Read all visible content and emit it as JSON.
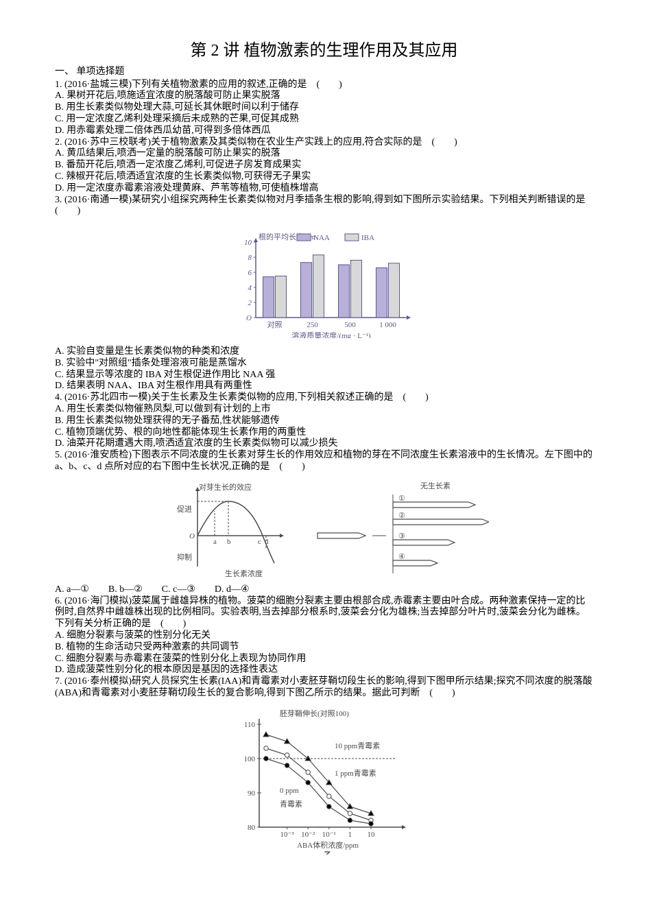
{
  "title": "第 2 讲  植物激素的生理作用及其应用",
  "section1": "一、 单项选择题",
  "q1": {
    "stem": "1. (2016·盐城三模)下列有关植物激素的应用的叙述,正确的是　(　　)",
    "A": "A.  果树开花后,喷施适宜浓度的脱落酸可防止果实脱落",
    "B": "B.  用生长素类似物处理大蒜,可延长其休眠时间以利于储存",
    "C": "C.  用一定浓度乙烯利处理采摘后未成熟的芒果,可促其成熟",
    "D": "D.  用赤霉素处理二倍体西瓜幼苗,可得到多倍体西瓜"
  },
  "q2": {
    "stem": "2.  (2016·苏中三校联考)关于植物激素及其类似物在农业生产实践上的应用,符合实际的是　(　　)",
    "A": "A.  黄瓜结果后,喷洒一定量的脱落酸可防止果实的脱落",
    "B": "B.  番茄开花后,喷洒一定浓度乙烯利,可促进子房发育成果实",
    "C": "C.  辣椒开花后,喷洒适宜浓度的生长素类似物,可获得无子果实",
    "D": "D.  用一定浓度赤霉素溶液处理黄麻、芦苇等植物,可使植株增高"
  },
  "q3": {
    "stem": "3. (2016·南通一模)某研究小组探究两种生长素类似物对月季插条生根的影响,得到如下图所示实验结果。下列相关判断错误的是　(　　)",
    "A": "A.  实验自变量是生长素类似物的种类和浓度",
    "B": "B.  实验中\"对照组\"插条处理溶液可能是蒸馏水",
    "C": "C.  结果显示等浓度的 IBA 对生根促进作用比 NAA 强",
    "D": "D.  结果表明 NAA、IBA 对生根作用具有两重性"
  },
  "fig1": {
    "ylabel": "根的平均长度/cm",
    "xlabel": "溶液质量浓度/(mg · L⁻¹)",
    "legend": [
      "NAA",
      "IBA"
    ],
    "legend_colors": [
      "#b8b0d8",
      "#d8d8d8"
    ],
    "xcats": [
      "对照",
      "250",
      "500",
      "1 000"
    ],
    "yticks": [
      0,
      2,
      4,
      6,
      8,
      10
    ],
    "naa": [
      5.4,
      7.3,
      7.0,
      6.6
    ],
    "iba": [
      5.5,
      8.3,
      7.6,
      7.2
    ],
    "bar_fill_naa": "#b8b0d8",
    "bar_fill_iba": "#d8d8d8",
    "bar_stroke": "#5a5a88",
    "axis_color": "#5a5a88",
    "text_color": "#5a5a88"
  },
  "q4": {
    "stem": "4. (2016·苏北四市一模)关于生长素及生长素类似物的应用,下列相关叙述正确的是　(　　)",
    "A": "A.  用生长素类似物催熟凤梨,可以做到有计划的上市",
    "B": "B.  用生长素类似物处理获得的无子番茄,性状能够遗传",
    "C": "C.  植物顶端优势、根的向地性都能体现生长素作用的两重性",
    "D": "D.  油菜开花期遭遇大雨,喷洒适宜浓度的生长素类似物可以减少损失"
  },
  "q5": {
    "stem": "5. (2016·淮安质检)下图表示不同浓度的生长素对芽生长的作用效应和植物的芽在不同浓度生长素溶液中的生长情况。左下图中的 a、b、c、d 点所对应的右下图中生长状况,正确的是　(　　)",
    "opts": "A. a—①　　B. b—②　　C. c—③　　D. d—④"
  },
  "fig2": {
    "left": {
      "ylabel_top": "对芽生长的效应",
      "ylabel_promote": "促进",
      "ylabel_inhibit": "抑制",
      "xlabel": "生长素浓度",
      "points": [
        "a",
        "b",
        "c",
        "d"
      ],
      "axis_color": "#4a4a4a"
    },
    "right": {
      "title": "无生长素",
      "labels": [
        "①",
        "②",
        "③",
        "④"
      ],
      "axis_color": "#4a4a4a"
    }
  },
  "q6": {
    "stem": "6. (2016·海门模拟)菠菜属于雌雄异株的植物。菠菜的细胞分裂素主要由根部合成,赤霉素主要由叶合成。两种激素保持一定的比例时,自然界中雌雄株出现的比例相同。实验表明,当去掉部分根系时,菠菜会分化为雄株;当去掉部分叶片时,菠菜会分化为雌株。下列有关分析正确的是　(　　)",
    "A": "A.  细胞分裂素与菠菜的性别分化无关",
    "B": "B.  植物的生命活动只受两种激素的共同调节",
    "C": "C.  细胞分裂素与赤霉素在菠菜的性别分化上表现为协同作用",
    "D": "D.  造成菠菜性别分化的根本原因是基因的选择性表达"
  },
  "q7": {
    "stem": "7.  (2016·泰州模拟)研究人员探究生长素(IAA)和青霉素对小麦胚芽鞘切段生长的影响,得到下图甲所示结果;探究不同浓度的脱落酸(ABA)和青霉素对小麦胚芽鞘切段生长的复合影响,得到下图乙所示的结果。据此可判断　(　　)"
  },
  "fig3": {
    "ylabel": "胚芽鞘伸长(对照100)",
    "xlabel": "ABA体积浓度/ppm",
    "subcaption": "乙",
    "xticks": [
      "10⁻³",
      "10⁻²",
      "10⁻¹",
      "1",
      "10"
    ],
    "yticks": [
      80,
      90,
      100,
      110
    ],
    "series": [
      {
        "label": "10 ppm青霉素",
        "marker": "triangle",
        "fill": "#000000",
        "y": [
          107,
          105,
          100,
          93,
          86,
          84
        ]
      },
      {
        "label": "1 ppm青霉素",
        "marker": "circle",
        "fill": "#ffffff",
        "y": [
          103,
          101,
          96,
          89,
          84,
          82
        ]
      },
      {
        "label": "0 ppm",
        "marker": "circle",
        "fill": "#000000",
        "y": [
          100,
          98,
          93,
          86,
          82,
          81
        ]
      },
      {
        "label": "青霉素",
        "marker": "",
        "fill": "",
        "y": []
      }
    ],
    "axis_color": "#4a4a4a",
    "text_color": "#4a4a4a"
  }
}
